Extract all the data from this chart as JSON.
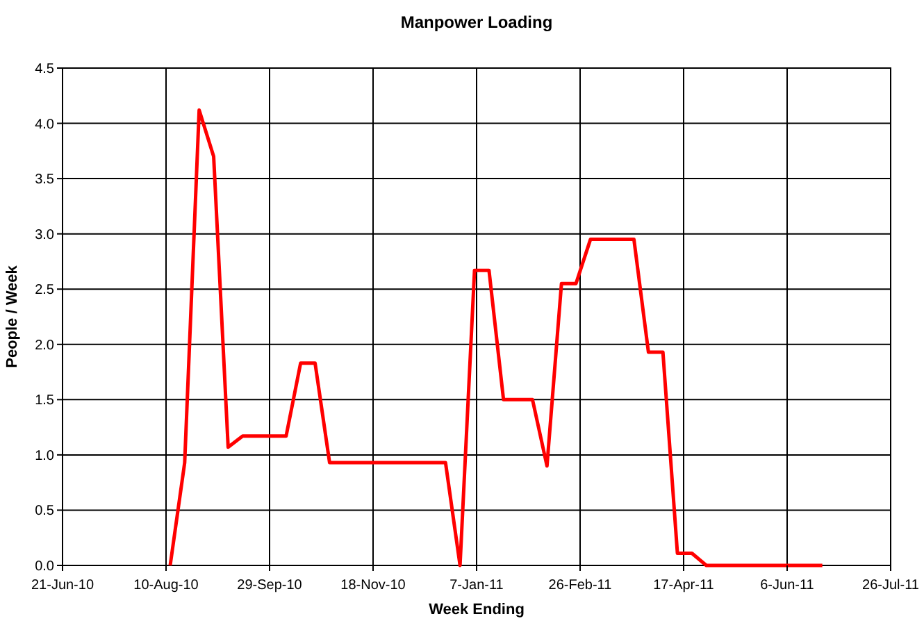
{
  "chart_data": {
    "type": "line",
    "title": "Manpower Loading",
    "xlabel": "Week Ending",
    "ylabel": "People / Week",
    "x": [
      "2010-08-12",
      "2010-08-19",
      "2010-08-26",
      "2010-09-02",
      "2010-09-09",
      "2010-09-16",
      "2010-09-23",
      "2010-09-30",
      "2010-10-07",
      "2010-10-14",
      "2010-10-21",
      "2010-10-28",
      "2010-11-04",
      "2010-11-11",
      "2010-11-18",
      "2010-11-25",
      "2010-12-02",
      "2010-12-09",
      "2010-12-16",
      "2010-12-23",
      "2010-12-30",
      "2011-01-06",
      "2011-01-13",
      "2011-01-20",
      "2011-01-27",
      "2011-02-03",
      "2011-02-10",
      "2011-02-17",
      "2011-02-24",
      "2011-03-03",
      "2011-03-10",
      "2011-03-17",
      "2011-03-24",
      "2011-03-31",
      "2011-04-07",
      "2011-04-14",
      "2011-04-21",
      "2011-04-28",
      "2011-05-05",
      "2011-05-12",
      "2011-05-19",
      "2011-05-26",
      "2011-06-02",
      "2011-06-09",
      "2011-06-16",
      "2011-06-23"
    ],
    "series": [
      {
        "color": "#ff0000",
        "values": [
          0,
          0.93,
          4.12,
          3.7,
          1.07,
          1.17,
          1.17,
          1.17,
          1.17,
          1.83,
          1.83,
          0.93,
          0.93,
          0.93,
          0.93,
          0.93,
          0.93,
          0.93,
          0.93,
          0.93,
          0,
          2.67,
          2.67,
          1.5,
          1.5,
          1.5,
          0.9,
          2.55,
          2.55,
          2.95,
          2.95,
          2.95,
          2.95,
          1.93,
          1.93,
          0.11,
          0.11,
          0,
          0,
          0,
          0,
          0,
          0,
          0,
          0,
          0
        ]
      }
    ],
    "xlim": [
      "2010-06-21",
      "2011-07-26"
    ],
    "xticks": [
      {
        "value": "2010-06-21",
        "label": "21-Jun-10"
      },
      {
        "value": "2010-08-10",
        "label": "10-Aug-10"
      },
      {
        "value": "2010-09-29",
        "label": "29-Sep-10"
      },
      {
        "value": "2010-11-18",
        "label": "18-Nov-10"
      },
      {
        "value": "2011-01-07",
        "label": "7-Jan-11"
      },
      {
        "value": "2011-02-26",
        "label": "26-Feb-11"
      },
      {
        "value": "2011-04-17",
        "label": "17-Apr-11"
      },
      {
        "value": "2011-06-06",
        "label": "6-Jun-11"
      },
      {
        "value": "2011-07-26",
        "label": "26-Jul-11"
      }
    ],
    "ylim": [
      0,
      4.5
    ],
    "yticks": [
      {
        "value": 0,
        "label": "0.0"
      },
      {
        "value": 0.5,
        "label": "0.5"
      },
      {
        "value": 1,
        "label": "1.0"
      },
      {
        "value": 1.5,
        "label": "1.5"
      },
      {
        "value": 2,
        "label": "2.0"
      },
      {
        "value": 2.5,
        "label": "2.5"
      },
      {
        "value": 3,
        "label": "3.0"
      },
      {
        "value": 3.5,
        "label": "3.5"
      },
      {
        "value": 4,
        "label": "4.0"
      },
      {
        "value": 4.5,
        "label": "4.5"
      }
    ],
    "grid": true,
    "line_style": "solid",
    "marker": "none"
  }
}
